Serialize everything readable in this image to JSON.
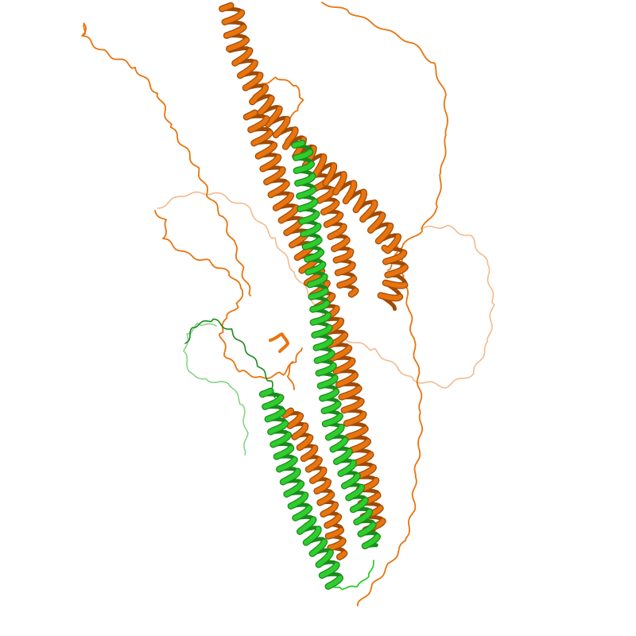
{
  "image": {
    "subject": "protein-ribbon-structure",
    "background": "#ffffff",
    "chains": [
      {
        "id": "chain-orange",
        "color": "#e8740f",
        "shade": "#a04a05",
        "light": "#f0b482"
      },
      {
        "id": "chain-green",
        "color": "#2ecc2e",
        "shade": "#1a8a1a",
        "light": "#86d486"
      }
    ]
  }
}
